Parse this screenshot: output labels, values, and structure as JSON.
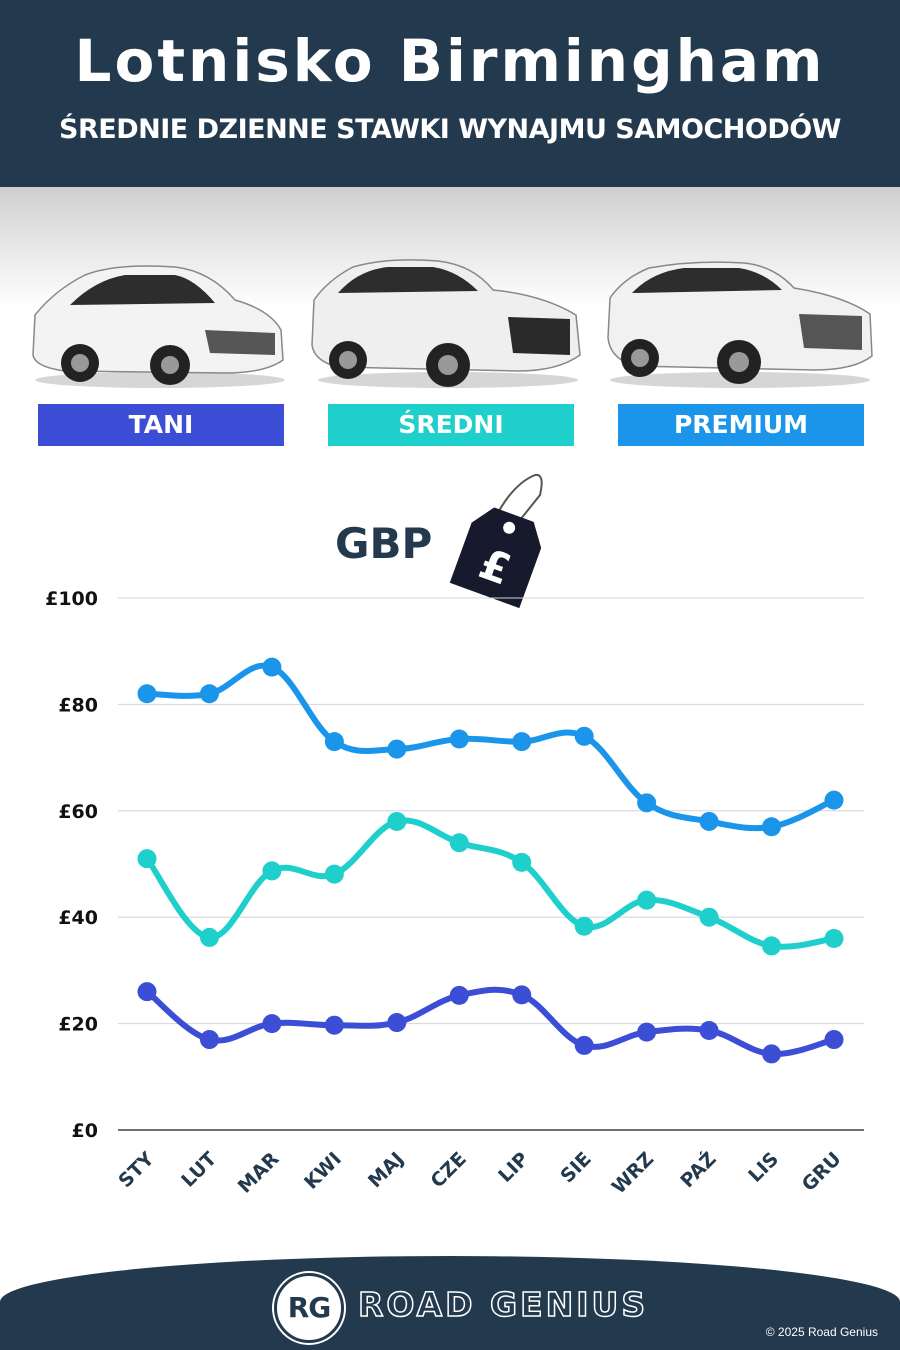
{
  "header": {
    "title": "Lotnisko Birmingham",
    "subtitle": "ŚREDNIE DZIENNE STAWKI WYNAJMU SAMOCHODÓW"
  },
  "categories": [
    {
      "label": "TANI",
      "color": "#3d4ed6"
    },
    {
      "label": "ŚREDNI",
      "color": "#1fcfcc"
    },
    {
      "label": "PREMIUM",
      "color": "#1b95ea"
    }
  ],
  "currency": {
    "label": "GBP",
    "tag_symbol": "£",
    "icon": "price-tag-icon"
  },
  "chart_data": {
    "type": "line",
    "categories": [
      "STY",
      "LUT",
      "MAR",
      "KWI",
      "MAJ",
      "CZE",
      "LIP",
      "SIE",
      "WRZ",
      "PAŹ",
      "LIS",
      "GRU"
    ],
    "ylim": [
      0,
      100
    ],
    "yticks": [
      {
        "value": 0,
        "label": "£0"
      },
      {
        "value": 20,
        "label": "£20"
      },
      {
        "value": 40,
        "label": "£40"
      },
      {
        "value": 60,
        "label": "£60"
      },
      {
        "value": 80,
        "label": "£80"
      },
      {
        "value": 100,
        "label": "£100"
      }
    ],
    "grid": true,
    "series": [
      {
        "name": "TANI",
        "color": "#3d4ed6",
        "values": [
          26,
          17,
          20,
          19.7,
          20.2,
          25.3,
          25.4,
          15.9,
          18.4,
          18.7,
          14.3,
          17
        ]
      },
      {
        "name": "ŚREDNI",
        "color": "#1fcfcc",
        "values": [
          51,
          36.2,
          48.7,
          48.1,
          58,
          54,
          50.3,
          38.3,
          43.2,
          40,
          34.6,
          36
        ]
      },
      {
        "name": "PREMIUM",
        "color": "#1b95ea",
        "values": [
          82,
          82,
          87,
          73,
          71.6,
          73.5,
          73,
          74,
          61.5,
          58,
          57,
          62
        ]
      }
    ]
  },
  "footer": {
    "logo_initials": "RG",
    "brand": "ROAD GENIUS",
    "copyright": "© 2025 Road Genius"
  }
}
